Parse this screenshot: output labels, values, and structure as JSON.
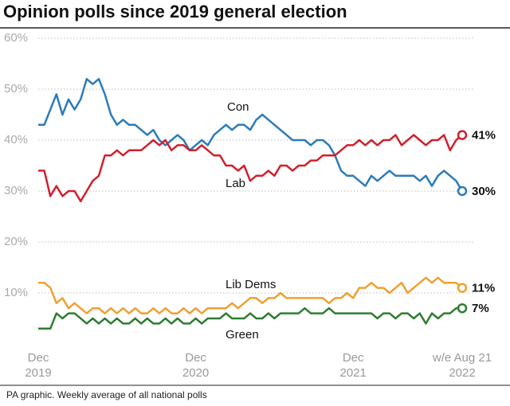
{
  "chart_data": {
    "type": "line",
    "title": "Opinion polls since 2019 general election",
    "note": "PA graphic. Weekly average of all national polls",
    "categories": [
      "Dec 2019",
      null,
      null,
      null,
      null,
      null,
      null,
      null,
      null,
      null,
      null,
      null,
      null,
      null,
      null,
      null,
      null,
      null,
      null,
      null,
      null,
      null,
      null,
      null,
      null,
      null,
      "Dec 2020",
      null,
      null,
      null,
      null,
      null,
      null,
      null,
      null,
      null,
      null,
      null,
      null,
      null,
      null,
      null,
      null,
      null,
      null,
      null,
      null,
      null,
      null,
      null,
      null,
      null,
      "Dec 2021",
      null,
      null,
      null,
      null,
      null,
      null,
      null,
      null,
      null,
      null,
      null,
      null,
      null,
      null,
      null,
      null,
      null,
      "w/e Aug 21 2022"
    ],
    "ylim": [
      0,
      60
    ],
    "yticks": [
      {
        "value": 10,
        "label": "10%"
      },
      {
        "value": 20,
        "label": "20%"
      },
      {
        "value": 30,
        "label": "30%"
      },
      {
        "value": 40,
        "label": "40%"
      },
      {
        "value": 50,
        "label": "50%"
      },
      {
        "value": 60,
        "label": "60%"
      }
    ],
    "grid": true,
    "series": [
      {
        "name": "Con",
        "color": "#2b7bb9",
        "values": [
          43,
          43,
          46,
          49,
          45,
          48,
          46,
          48,
          52,
          51,
          52,
          49,
          45,
          43,
          44,
          43,
          43,
          42,
          41,
          42,
          40,
          39,
          40,
          41,
          40,
          38,
          39,
          40,
          39,
          41,
          42,
          43,
          42,
          43,
          43,
          42,
          44,
          45,
          44,
          43,
          42,
          41,
          40,
          40,
          40,
          39,
          40,
          40,
          39,
          37,
          34,
          33,
          33,
          32,
          31,
          33,
          32,
          33,
          34,
          33,
          33,
          33,
          33,
          32,
          33,
          31,
          33,
          34,
          33,
          32,
          30
        ],
        "value_labels": [
          null,
          null,
          null,
          null,
          null,
          null,
          null,
          null,
          null,
          null,
          null,
          null,
          null,
          null,
          null,
          null,
          null,
          null,
          null,
          null,
          null,
          null,
          null,
          null,
          null,
          null,
          null,
          null,
          null,
          null,
          null,
          null,
          null,
          null,
          null,
          null,
          null,
          null,
          null,
          null,
          null,
          null,
          null,
          null,
          null,
          null,
          null,
          null,
          null,
          null,
          null,
          null,
          null,
          null,
          null,
          null,
          null,
          null,
          null,
          null,
          null,
          null,
          null,
          null,
          null,
          null,
          null,
          null,
          null,
          null,
          "30%"
        ]
      },
      {
        "name": "Lab",
        "color": "#d0202e",
        "values": [
          34,
          34,
          29,
          31,
          29,
          30,
          30,
          28,
          30,
          32,
          33,
          37,
          37,
          38,
          37,
          38,
          38,
          38,
          39,
          40,
          39,
          40,
          38,
          39,
          39,
          38,
          38,
          39,
          38,
          37,
          37,
          35,
          35,
          34,
          35,
          32,
          33,
          33,
          34,
          33,
          35,
          35,
          34,
          35,
          35,
          36,
          36,
          37,
          37,
          37,
          38,
          39,
          39,
          40,
          39,
          40,
          39,
          40,
          40,
          41,
          39,
          40,
          41,
          40,
          39,
          40,
          40,
          41,
          38,
          40,
          41
        ],
        "value_labels": [
          null,
          null,
          null,
          null,
          null,
          null,
          null,
          null,
          null,
          null,
          null,
          null,
          null,
          null,
          null,
          null,
          null,
          null,
          null,
          null,
          null,
          null,
          null,
          null,
          null,
          null,
          null,
          null,
          null,
          null,
          null,
          null,
          null,
          null,
          null,
          null,
          null,
          null,
          null,
          null,
          null,
          null,
          null,
          null,
          null,
          null,
          null,
          null,
          null,
          null,
          null,
          null,
          null,
          null,
          null,
          null,
          null,
          null,
          null,
          null,
          null,
          null,
          null,
          null,
          null,
          null,
          null,
          null,
          null,
          null,
          "41%"
        ]
      },
      {
        "name": "Lib Dems",
        "color": "#f0a030",
        "values": [
          12,
          12,
          11,
          8,
          9,
          7,
          8,
          7,
          6,
          7,
          7,
          6,
          7,
          6,
          7,
          6,
          7,
          6,
          6,
          7,
          6,
          7,
          6,
          6,
          7,
          6,
          7,
          6,
          7,
          7,
          7,
          7,
          8,
          7,
          8,
          9,
          9,
          8,
          9,
          9,
          10,
          9,
          9,
          9,
          9,
          9,
          9,
          9,
          8,
          9,
          9,
          10,
          9,
          11,
          11,
          12,
          11,
          11,
          10,
          11,
          12,
          10,
          11,
          12,
          13,
          12,
          13,
          12,
          12,
          12,
          11
        ],
        "value_labels": [
          null,
          null,
          null,
          null,
          null,
          null,
          null,
          null,
          null,
          null,
          null,
          null,
          null,
          null,
          null,
          null,
          null,
          null,
          null,
          null,
          null,
          null,
          null,
          null,
          null,
          null,
          null,
          null,
          null,
          null,
          null,
          null,
          null,
          null,
          null,
          null,
          null,
          null,
          null,
          null,
          null,
          null,
          null,
          null,
          null,
          null,
          null,
          null,
          null,
          null,
          null,
          null,
          null,
          null,
          null,
          null,
          null,
          null,
          null,
          null,
          null,
          null,
          null,
          null,
          null,
          null,
          null,
          null,
          null,
          null,
          "11%"
        ]
      },
      {
        "name": "Green",
        "color": "#2e7d32",
        "values": [
          3,
          3,
          3,
          6,
          5,
          6,
          6,
          5,
          4,
          5,
          4,
          5,
          4,
          5,
          4,
          4,
          5,
          4,
          5,
          4,
          4,
          5,
          4,
          5,
          4,
          4,
          5,
          4,
          5,
          5,
          5,
          6,
          5,
          5,
          5,
          6,
          5,
          5,
          6,
          5,
          6,
          6,
          6,
          6,
          7,
          6,
          6,
          6,
          7,
          6,
          6,
          6,
          6,
          6,
          6,
          6,
          5,
          6,
          6,
          5,
          6,
          6,
          5,
          6,
          4,
          6,
          5,
          6,
          6,
          7,
          7
        ],
        "value_labels": [
          null,
          null,
          null,
          null,
          null,
          null,
          null,
          null,
          null,
          null,
          null,
          null,
          null,
          null,
          null,
          null,
          null,
          null,
          null,
          null,
          null,
          null,
          null,
          null,
          null,
          null,
          null,
          null,
          null,
          null,
          null,
          null,
          null,
          null,
          null,
          null,
          null,
          null,
          null,
          null,
          null,
          null,
          null,
          null,
          null,
          null,
          null,
          null,
          null,
          null,
          null,
          null,
          null,
          null,
          null,
          null,
          null,
          null,
          null,
          null,
          null,
          null,
          null,
          null,
          null,
          null,
          null,
          null,
          null,
          null,
          "7%"
        ]
      }
    ]
  }
}
